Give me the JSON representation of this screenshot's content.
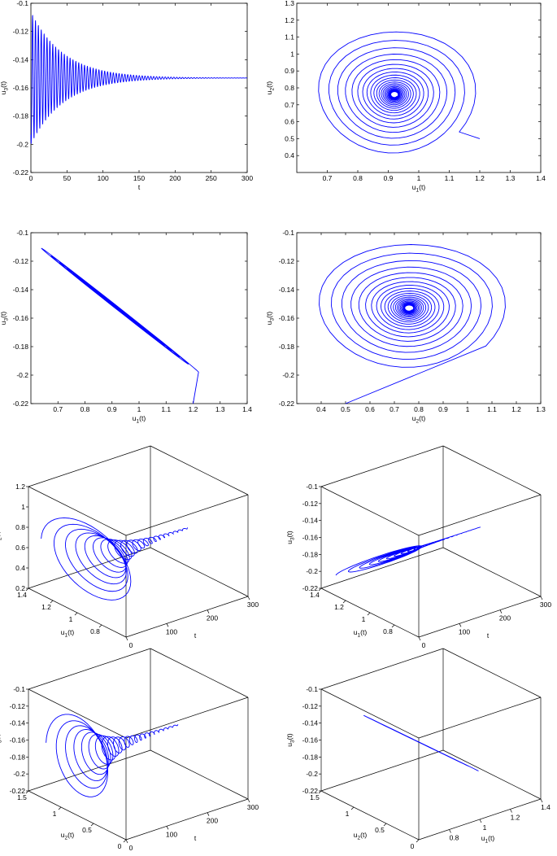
{
  "figure": {
    "line_color": "#0000ff",
    "axis_color": "#000000"
  },
  "chart_data": [
    {
      "type": "line",
      "panel": "u3-vs-t",
      "xlabel": "t",
      "ylabel": "u3(t)",
      "xlim": [
        0,
        300
      ],
      "ylim": [
        -0.22,
        -0.1
      ],
      "xticks": [
        0,
        50,
        100,
        150,
        200,
        250,
        300
      ],
      "yticks": [
        -0.22,
        -0.2,
        -0.18,
        -0.16,
        -0.14,
        -0.12,
        -0.1
      ],
      "xtick_labels": [
        "0",
        "50",
        "100",
        "150",
        "200",
        "250",
        "300"
      ],
      "ytick_labels": [
        "-0.22",
        "-0.2",
        "-0.18",
        "-0.16",
        "-0.14",
        "-0.12",
        "-0.1"
      ],
      "series": [
        {
          "x_start": 0,
          "x_end": 300,
          "baseline": -0.153,
          "initial_amplitude": 0.047,
          "decay_rate": 0.022,
          "period": 4.0
        }
      ]
    },
    {
      "type": "line",
      "panel": "u2-vs-u1",
      "xlabel": "u1(t)",
      "ylabel": "u2(t)",
      "xlim": [
        0.6,
        1.4
      ],
      "ylim": [
        0.3,
        1.3
      ],
      "xticks": [
        0.7,
        0.8,
        0.9,
        1,
        1.1,
        1.2,
        1.3,
        1.4
      ],
      "yticks": [
        0.4,
        0.5,
        0.6,
        0.7,
        0.8,
        0.9,
        1,
        1.1,
        1.2,
        1.3
      ],
      "xtick_labels": [
        "0.7",
        "0.8",
        "0.9",
        "1",
        "1.1",
        "1.2",
        "1.3",
        "1.4"
      ],
      "ytick_labels": [
        "0.4",
        "0.5",
        "0.6",
        "0.7",
        "0.8",
        "0.9",
        "1",
        "1.1",
        "1.2",
        "1.3"
      ],
      "series": [
        {
          "start": [
            1.2,
            0.5
          ],
          "center": [
            0.92,
            0.76
          ],
          "initial_radii": [
            0.27,
            0.39
          ],
          "turns": 22
        }
      ]
    },
    {
      "type": "line",
      "panel": "u3-vs-u1",
      "xlabel": "u1(t)",
      "ylabel": "u3(t)",
      "xlim": [
        0.6,
        1.4
      ],
      "ylim": [
        -0.22,
        -0.1
      ],
      "xticks": [
        0.7,
        0.8,
        0.9,
        1,
        1.1,
        1.2,
        1.3,
        1.4
      ],
      "yticks": [
        -0.22,
        -0.2,
        -0.18,
        -0.16,
        -0.14,
        -0.12,
        -0.1
      ],
      "xtick_labels": [
        "0.7",
        "0.8",
        "0.9",
        "1",
        "1.1",
        "1.2",
        "1.3",
        "1.4"
      ],
      "ytick_labels": [
        "-0.22",
        "-0.2",
        "-0.18",
        "-0.16",
        "-0.14",
        "-0.12",
        "-0.1"
      ],
      "series": [
        {
          "start": [
            1.2,
            -0.22
          ],
          "corner_high": [
            0.64,
            -0.109
          ],
          "corner_low": [
            1.24,
            -0.199
          ],
          "center": [
            0.92,
            -0.153
          ],
          "turns": 22
        }
      ]
    },
    {
      "type": "line",
      "panel": "u3-vs-u2",
      "xlabel": "u2(t)",
      "ylabel": "u3(t)",
      "xlim": [
        0.3,
        1.3
      ],
      "ylim": [
        -0.22,
        -0.1
      ],
      "xticks": [
        0.4,
        0.5,
        0.6,
        0.7,
        0.8,
        0.9,
        1,
        1.1,
        1.2,
        1.3
      ],
      "yticks": [
        -0.22,
        -0.2,
        -0.18,
        -0.16,
        -0.14,
        -0.12,
        -0.1
      ],
      "xtick_labels": [
        "0.4",
        "0.5",
        "0.6",
        "0.7",
        "0.8",
        "0.9",
        "1",
        "1.1",
        "1.2",
        "1.3"
      ],
      "ytick_labels": [
        "-0.22",
        "-0.2",
        "-0.18",
        "-0.16",
        "-0.14",
        "-0.12",
        "-0.1"
      ],
      "series": [
        {
          "start": [
            0.5,
            -0.22
          ],
          "center": [
            0.76,
            -0.153
          ],
          "initial_radii": [
            0.4,
            0.047
          ],
          "turns": 22
        }
      ]
    },
    {
      "type": "line",
      "panel": "3d-u2-u1-t",
      "xlabel": "t",
      "ylabel": "u1(t)",
      "zlabel": "u2(t)",
      "xlim": [
        0,
        300
      ],
      "ylim": [
        0.6,
        1.4
      ],
      "zlim": [
        0.2,
        1.2
      ],
      "xticks": [
        0,
        100,
        200,
        300
      ],
      "yticks": [
        0.8,
        1,
        1.2,
        1.4
      ],
      "zticks": [
        0.2,
        0.4,
        0.6,
        0.8,
        1,
        1.2
      ],
      "xtick_labels": [
        "0",
        "100",
        "200",
        "300"
      ],
      "ytick_labels": [
        "0.8",
        "1",
        "1.2",
        "1.4"
      ],
      "ztick_labels": [
        "0.2",
        "0.4",
        "0.6",
        "0.8",
        "1",
        "1.2"
      ],
      "series": [
        {
          "coordinates": [
            "t",
            "u1",
            "u2"
          ],
          "turns": 22,
          "t_end": 250
        }
      ]
    },
    {
      "type": "line",
      "panel": "3d-u3-u1-t",
      "xlabel": "t",
      "ylabel": "u1(t)",
      "zlabel": "u3(t)",
      "xlim": [
        0,
        300
      ],
      "ylim": [
        0.6,
        1.4
      ],
      "zlim": [
        -0.22,
        -0.1
      ],
      "xticks": [
        0,
        100,
        200,
        300
      ],
      "yticks": [
        0.8,
        1,
        1.2,
        1.4
      ],
      "zticks": [
        -0.22,
        -0.2,
        -0.18,
        -0.16,
        -0.14,
        -0.12,
        -0.1
      ],
      "xtick_labels": [
        "0",
        "100",
        "200",
        "300"
      ],
      "ytick_labels": [
        "0.8",
        "1",
        "1.2",
        "1.4"
      ],
      "ztick_labels": [
        "-0.22",
        "-0.2",
        "-0.18",
        "-0.16",
        "-0.14",
        "-0.12",
        "-0.1"
      ],
      "series": [
        {
          "coordinates": [
            "t",
            "u1",
            "u3"
          ],
          "turns": 22,
          "t_end": 250
        }
      ]
    },
    {
      "type": "line",
      "panel": "3d-u3-u2-t",
      "xlabel": "t",
      "ylabel": "u2(t)",
      "zlabel": "u3(t)",
      "xlim": [
        0,
        300
      ],
      "ylim": [
        0,
        1.5
      ],
      "zlim": [
        -0.22,
        -0.1
      ],
      "xticks": [
        0,
        100,
        200,
        300
      ],
      "yticks": [
        0,
        0.5,
        1,
        1.5
      ],
      "zticks": [
        -0.22,
        -0.2,
        -0.18,
        -0.16,
        -0.14,
        -0.12,
        -0.1
      ],
      "xtick_labels": [
        "0",
        "100",
        "200",
        "300"
      ],
      "ytick_labels": [
        "0",
        "0.5",
        "1",
        "1.5"
      ],
      "ztick_labels": [
        "-0.22",
        "-0.2",
        "-0.18",
        "-0.16",
        "-0.14",
        "-0.12",
        "-0.1"
      ],
      "series": [
        {
          "coordinates": [
            "t",
            "u2",
            "u3"
          ],
          "turns": 22,
          "t_end": 250
        }
      ]
    },
    {
      "type": "line",
      "panel": "3d-u3-u2-u1",
      "xlabel": "u1(t)",
      "ylabel": "u2(t)",
      "zlabel": "u3(t)",
      "xlim": [
        0.6,
        1.4
      ],
      "ylim": [
        0,
        1.5
      ],
      "zlim": [
        -0.22,
        -0.1
      ],
      "xticks": [
        0.8,
        1,
        1.2,
        1.4
      ],
      "yticks": [
        0,
        0.5,
        1,
        1.5
      ],
      "zticks": [
        -0.22,
        -0.2,
        -0.18,
        -0.16,
        -0.14,
        -0.12,
        -0.1
      ],
      "xtick_labels": [
        "0.8",
        "1",
        "1.2",
        "1.4"
      ],
      "ytick_labels": [
        "0",
        "0.5",
        "1",
        "1.5"
      ],
      "ztick_labels": [
        "-0.22",
        "-0.2",
        "-0.18",
        "-0.16",
        "-0.14",
        "-0.12",
        "-0.1"
      ],
      "series": [
        {
          "coordinates": [
            "u1",
            "u2",
            "u3"
          ],
          "turns": 22
        }
      ]
    }
  ]
}
